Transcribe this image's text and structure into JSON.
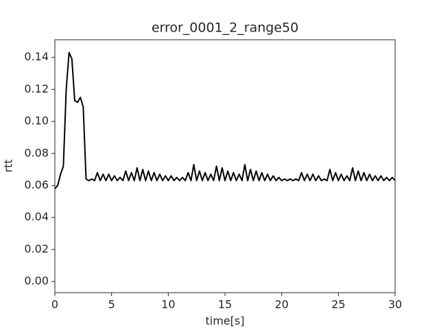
{
  "chart_data": {
    "type": "line",
    "title": "error_0001_2_range50",
    "x_label": "time[s]",
    "y_label": "rtt",
    "x": [
      0,
      0.25,
      0.5,
      0.75,
      1,
      1.25,
      1.5,
      1.75,
      2,
      2.25,
      2.5,
      2.75,
      3,
      3.25,
      3.5,
      3.75,
      4,
      4.25,
      4.5,
      4.75,
      5,
      5.25,
      5.5,
      5.75,
      6,
      6.25,
      6.5,
      6.75,
      7,
      7.25,
      7.5,
      7.75,
      8,
      8.25,
      8.5,
      8.75,
      9,
      9.25,
      9.5,
      9.75,
      10,
      10.25,
      10.5,
      10.75,
      11,
      11.25,
      11.5,
      11.75,
      12,
      12.25,
      12.5,
      12.75,
      13,
      13.25,
      13.5,
      13.75,
      14,
      14.25,
      14.5,
      14.75,
      15,
      15.25,
      15.5,
      15.75,
      16,
      16.25,
      16.5,
      16.75,
      17,
      17.25,
      17.5,
      17.75,
      18,
      18.25,
      18.5,
      18.75,
      19,
      19.25,
      19.5,
      19.75,
      20,
      20.25,
      20.5,
      20.75,
      21,
      21.25,
      21.5,
      21.75,
      22,
      22.25,
      22.5,
      22.75,
      23,
      23.25,
      23.5,
      23.75,
      24,
      24.25,
      24.5,
      24.75,
      25,
      25.25,
      25.5,
      25.75,
      26,
      26.25,
      26.5,
      26.75,
      27,
      27.25,
      27.5,
      27.75,
      28,
      28.25,
      28.5,
      28.75,
      29,
      29.25,
      29.5,
      29.75,
      30
    ],
    "series": [
      {
        "name": "rtt",
        "color": "#000000",
        "values": [
          0.058,
          0.06,
          0.067,
          0.072,
          0.12,
          0.143,
          0.139,
          0.113,
          0.112,
          0.115,
          0.109,
          0.064,
          0.063,
          0.064,
          0.063,
          0.068,
          0.063,
          0.067,
          0.063,
          0.067,
          0.063,
          0.066,
          0.063,
          0.065,
          0.063,
          0.069,
          0.063,
          0.068,
          0.063,
          0.071,
          0.063,
          0.07,
          0.063,
          0.069,
          0.063,
          0.068,
          0.063,
          0.067,
          0.063,
          0.066,
          0.063,
          0.066,
          0.063,
          0.065,
          0.063,
          0.065,
          0.063,
          0.068,
          0.063,
          0.073,
          0.063,
          0.069,
          0.063,
          0.068,
          0.063,
          0.067,
          0.063,
          0.072,
          0.063,
          0.071,
          0.063,
          0.069,
          0.063,
          0.068,
          0.063,
          0.067,
          0.063,
          0.073,
          0.063,
          0.07,
          0.063,
          0.069,
          0.063,
          0.068,
          0.063,
          0.067,
          0.063,
          0.066,
          0.063,
          0.065,
          0.063,
          0.064,
          0.063,
          0.064,
          0.063,
          0.064,
          0.063,
          0.068,
          0.063,
          0.067,
          0.063,
          0.067,
          0.063,
          0.066,
          0.063,
          0.064,
          0.063,
          0.07,
          0.063,
          0.068,
          0.063,
          0.067,
          0.063,
          0.066,
          0.063,
          0.071,
          0.063,
          0.069,
          0.063,
          0.068,
          0.063,
          0.067,
          0.063,
          0.066,
          0.063,
          0.066,
          0.063,
          0.065,
          0.063,
          0.065,
          0.063
        ]
      }
    ],
    "xlim": [
      0,
      30
    ],
    "xticks": [
      0,
      5,
      10,
      15,
      20,
      25,
      30
    ],
    "ylim": [
      -0.007,
      0.151
    ],
    "yticks": [
      {
        "value": 0,
        "label": "0.00"
      },
      0.02,
      0.04,
      0.06,
      0.08,
      {
        "value": 0.1,
        "label": "0.10"
      },
      0.12,
      0.14
    ],
    "grid": false
  }
}
